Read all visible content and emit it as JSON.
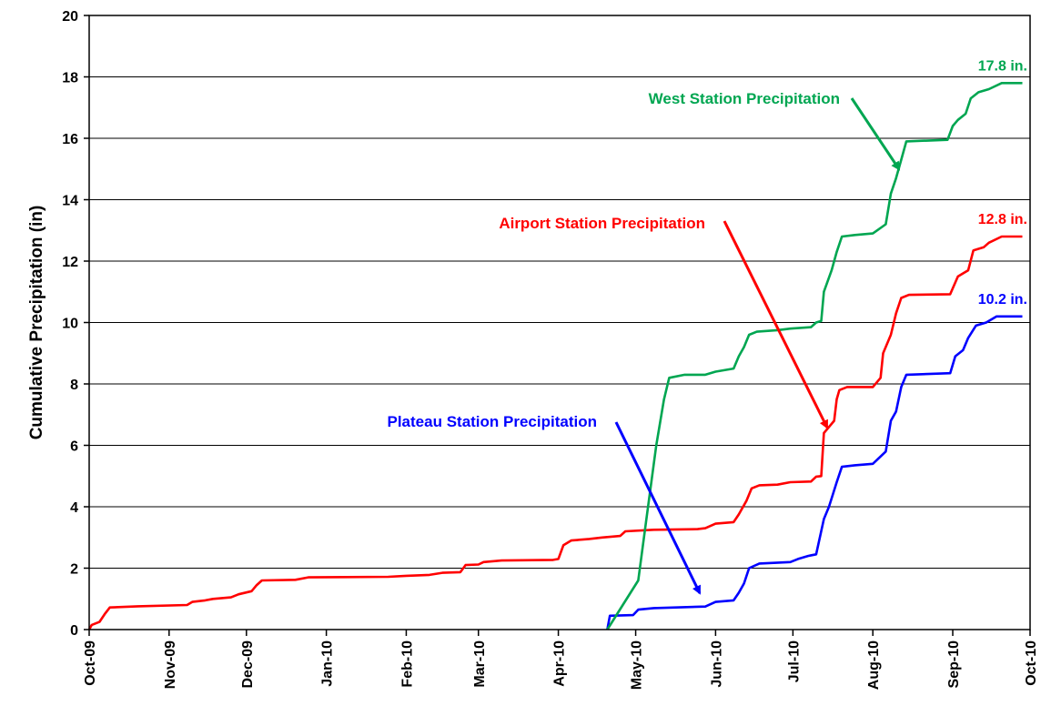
{
  "chart_data": {
    "type": "line",
    "ylabel": "Cumulative Precipitation (in)",
    "ylim": [
      0,
      20
    ],
    "y_ticks": [
      0,
      2,
      4,
      6,
      8,
      10,
      12,
      14,
      16,
      18,
      20
    ],
    "xlim": [
      "2009-10-01",
      "2010-10-01"
    ],
    "x_ticks": [
      {
        "date": "2009-10-01",
        "label": "Oct-09"
      },
      {
        "date": "2009-11-01",
        "label": "Nov-09"
      },
      {
        "date": "2009-12-01",
        "label": "Dec-09"
      },
      {
        "date": "2010-01-01",
        "label": "Jan-10"
      },
      {
        "date": "2010-02-01",
        "label": "Feb-10"
      },
      {
        "date": "2010-03-01",
        "label": "Mar-10"
      },
      {
        "date": "2010-04-01",
        "label": "Apr-10"
      },
      {
        "date": "2010-05-01",
        "label": "May-10"
      },
      {
        "date": "2010-06-01",
        "label": "Jun-10"
      },
      {
        "date": "2010-07-01",
        "label": "Jul-10"
      },
      {
        "date": "2010-08-01",
        "label": "Aug-10"
      },
      {
        "date": "2010-09-01",
        "label": "Sep-10"
      },
      {
        "date": "2010-10-01",
        "label": "Oct-10"
      }
    ],
    "grid": "horizontal",
    "series": [
      {
        "name": "Airport Station Precipitation",
        "color": "#ff0000",
        "end_label": "12.8 in.",
        "points": [
          [
            "2009-10-01",
            0
          ],
          [
            "2009-10-02",
            0.15
          ],
          [
            "2009-10-05",
            0.25
          ],
          [
            "2009-10-07",
            0.5
          ],
          [
            "2009-10-09",
            0.72
          ],
          [
            "2009-10-20",
            0.76
          ],
          [
            "2009-11-08",
            0.8
          ],
          [
            "2009-11-10",
            0.9
          ],
          [
            "2009-11-15",
            0.95
          ],
          [
            "2009-11-18",
            1.0
          ],
          [
            "2009-11-25",
            1.05
          ],
          [
            "2009-11-28",
            1.15
          ],
          [
            "2009-12-03",
            1.25
          ],
          [
            "2009-12-05",
            1.45
          ],
          [
            "2009-12-07",
            1.6
          ],
          [
            "2009-12-20",
            1.62
          ],
          [
            "2009-12-25",
            1.7
          ],
          [
            "2010-01-25",
            1.72
          ],
          [
            "2010-02-01",
            1.75
          ],
          [
            "2010-02-10",
            1.78
          ],
          [
            "2010-02-15",
            1.85
          ],
          [
            "2010-02-22",
            1.87
          ],
          [
            "2010-02-24",
            2.1
          ],
          [
            "2010-03-01",
            2.12
          ],
          [
            "2010-03-03",
            2.2
          ],
          [
            "2010-03-10",
            2.25
          ],
          [
            "2010-03-30",
            2.27
          ],
          [
            "2010-04-01",
            2.3
          ],
          [
            "2010-04-03",
            2.75
          ],
          [
            "2010-04-06",
            2.9
          ],
          [
            "2010-04-13",
            2.95
          ],
          [
            "2010-04-18",
            3.0
          ],
          [
            "2010-04-25",
            3.05
          ],
          [
            "2010-04-27",
            3.2
          ],
          [
            "2010-05-08",
            3.25
          ],
          [
            "2010-05-25",
            3.27
          ],
          [
            "2010-05-28",
            3.3
          ],
          [
            "2010-06-01",
            3.45
          ],
          [
            "2010-06-08",
            3.5
          ],
          [
            "2010-06-10",
            3.75
          ],
          [
            "2010-06-13",
            4.2
          ],
          [
            "2010-06-15",
            4.6
          ],
          [
            "2010-06-18",
            4.7
          ],
          [
            "2010-06-25",
            4.72
          ],
          [
            "2010-06-30",
            4.8
          ],
          [
            "2010-07-08",
            4.82
          ],
          [
            "2010-07-10",
            4.98
          ],
          [
            "2010-07-12",
            5.0
          ],
          [
            "2010-07-13",
            6.4
          ],
          [
            "2010-07-15",
            6.6
          ],
          [
            "2010-07-17",
            6.8
          ],
          [
            "2010-07-18",
            7.5
          ],
          [
            "2010-07-19",
            7.8
          ],
          [
            "2010-07-22",
            7.9
          ],
          [
            "2010-08-01",
            7.9
          ],
          [
            "2010-08-04",
            8.2
          ],
          [
            "2010-08-05",
            9.0
          ],
          [
            "2010-08-08",
            9.6
          ],
          [
            "2010-08-10",
            10.3
          ],
          [
            "2010-08-12",
            10.8
          ],
          [
            "2010-08-15",
            10.9
          ],
          [
            "2010-08-31",
            10.92
          ],
          [
            "2010-09-03",
            11.5
          ],
          [
            "2010-09-05",
            11.6
          ],
          [
            "2010-09-07",
            11.7
          ],
          [
            "2010-09-09",
            12.35
          ],
          [
            "2010-09-13",
            12.45
          ],
          [
            "2010-09-15",
            12.6
          ],
          [
            "2010-09-20",
            12.8
          ],
          [
            "2010-09-28",
            12.8
          ]
        ]
      },
      {
        "name": "Plateau Station Precipitation",
        "color": "#0000ff",
        "end_label": "10.2 in.",
        "points": [
          [
            "2010-04-20",
            0
          ],
          [
            "2010-04-21",
            0.45
          ],
          [
            "2010-04-30",
            0.47
          ],
          [
            "2010-05-02",
            0.65
          ],
          [
            "2010-05-08",
            0.7
          ],
          [
            "2010-05-28",
            0.75
          ],
          [
            "2010-06-01",
            0.9
          ],
          [
            "2010-06-08",
            0.95
          ],
          [
            "2010-06-10",
            1.2
          ],
          [
            "2010-06-12",
            1.5
          ],
          [
            "2010-06-14",
            2.0
          ],
          [
            "2010-06-18",
            2.15
          ],
          [
            "2010-06-30",
            2.2
          ],
          [
            "2010-07-03",
            2.3
          ],
          [
            "2010-07-07",
            2.4
          ],
          [
            "2010-07-10",
            2.45
          ],
          [
            "2010-07-13",
            3.6
          ],
          [
            "2010-07-15",
            4.0
          ],
          [
            "2010-07-18",
            4.8
          ],
          [
            "2010-07-20",
            5.3
          ],
          [
            "2010-07-25",
            5.35
          ],
          [
            "2010-08-01",
            5.4
          ],
          [
            "2010-08-06",
            5.8
          ],
          [
            "2010-08-08",
            6.8
          ],
          [
            "2010-08-10",
            7.1
          ],
          [
            "2010-08-12",
            7.9
          ],
          [
            "2010-08-14",
            8.3
          ],
          [
            "2010-08-31",
            8.35
          ],
          [
            "2010-09-02",
            8.9
          ],
          [
            "2010-09-05",
            9.1
          ],
          [
            "2010-09-07",
            9.5
          ],
          [
            "2010-09-10",
            9.9
          ],
          [
            "2010-09-14",
            10.0
          ],
          [
            "2010-09-18",
            10.2
          ],
          [
            "2010-09-28",
            10.2
          ]
        ]
      },
      {
        "name": "West Station Precipitation",
        "color": "#00a651",
        "end_label": "17.8 in.",
        "points": [
          [
            "2010-04-20",
            0
          ],
          [
            "2010-04-23",
            0.4
          ],
          [
            "2010-04-26",
            0.8
          ],
          [
            "2010-04-29",
            1.2
          ],
          [
            "2010-05-02",
            1.6
          ],
          [
            "2010-05-05",
            3.5
          ],
          [
            "2010-05-09",
            6.0
          ],
          [
            "2010-05-12",
            7.5
          ],
          [
            "2010-05-14",
            8.2
          ],
          [
            "2010-05-20",
            8.3
          ],
          [
            "2010-05-28",
            8.3
          ],
          [
            "2010-06-01",
            8.4
          ],
          [
            "2010-06-08",
            8.5
          ],
          [
            "2010-06-10",
            8.9
          ],
          [
            "2010-06-12",
            9.2
          ],
          [
            "2010-06-14",
            9.6
          ],
          [
            "2010-06-17",
            9.7
          ],
          [
            "2010-06-25",
            9.75
          ],
          [
            "2010-06-30",
            9.8
          ],
          [
            "2010-07-08",
            9.85
          ],
          [
            "2010-07-10",
            10.0
          ],
          [
            "2010-07-12",
            10.05
          ],
          [
            "2010-07-13",
            11.0
          ],
          [
            "2010-07-16",
            11.7
          ],
          [
            "2010-07-18",
            12.3
          ],
          [
            "2010-07-20",
            12.8
          ],
          [
            "2010-07-25",
            12.85
          ],
          [
            "2010-08-01",
            12.9
          ],
          [
            "2010-08-06",
            13.2
          ],
          [
            "2010-08-08",
            14.2
          ],
          [
            "2010-08-10",
            14.7
          ],
          [
            "2010-08-12",
            15.3
          ],
          [
            "2010-08-14",
            15.9
          ],
          [
            "2010-08-30",
            15.95
          ],
          [
            "2010-09-01",
            16.4
          ],
          [
            "2010-09-03",
            16.6
          ],
          [
            "2010-09-06",
            16.8
          ],
          [
            "2010-09-08",
            17.3
          ],
          [
            "2010-09-11",
            17.5
          ],
          [
            "2010-09-15",
            17.6
          ],
          [
            "2010-09-20",
            17.8
          ],
          [
            "2010-09-28",
            17.8
          ]
        ]
      }
    ],
    "annotations": [
      {
        "text": "West Station Precipitation",
        "color": "#00a651"
      },
      {
        "text": "Airport Station Precipitation",
        "color": "#ff0000"
      },
      {
        "text": "Plateau Station Precipitation",
        "color": "#0000ff"
      }
    ]
  }
}
